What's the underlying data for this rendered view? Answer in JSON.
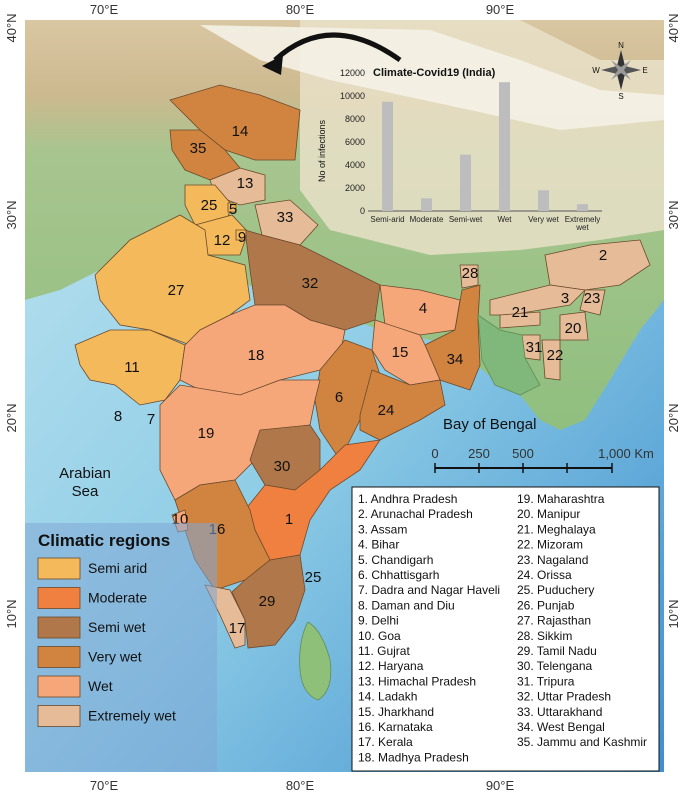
{
  "axes": {
    "longitude_labels": [
      "70°E",
      "80°E",
      "90°E"
    ],
    "latitude_labels": [
      "40°N",
      "30°N",
      "20°N",
      "10°N"
    ]
  },
  "seas": {
    "bay_of_bengal": "Bay of Bengal",
    "arabian_sea_line1": "Arabian",
    "arabian_sea_line2": "Sea"
  },
  "compass": {
    "north": "N",
    "south": "S",
    "east": "E",
    "west": "W"
  },
  "scale_bar": {
    "ticks": [
      "0",
      "250",
      "500"
    ],
    "end_label": "1,000 Km"
  },
  "climatic_legend": {
    "title": "Climatic regions",
    "items": [
      {
        "label": "Semi arid",
        "color": "#f3b95a"
      },
      {
        "label": "Moderate",
        "color": "#f08040"
      },
      {
        "label": "Semi wet",
        "color": "#b0784a"
      },
      {
        "label": "Very wet",
        "color": "#d08440"
      },
      {
        "label": "Wet",
        "color": "#f6a77a"
      },
      {
        "label": "Extremely wet",
        "color": "#e6bb98"
      }
    ]
  },
  "states": [
    "1. Andhra Pradesh",
    "2. Arunachal Pradesh",
    "3. Assam",
    "4. Bihar",
    "5. Chandigarh",
    "6. Chhattisgarh",
    "7. Dadra and Nagar Haveli",
    "8. Daman and Diu",
    "9. Delhi",
    "10. Goa",
    "11. Gujrat",
    "12. Haryana",
    "13. Himachal Pradesh",
    "14. Ladakh",
    "15. Jharkhand",
    "16. Karnataka",
    "17. Kerala",
    "18. Madhya Pradesh",
    "19. Maharashtra",
    "20. Manipur",
    "21. Meghalaya",
    "22. Mizoram",
    "23. Nagaland",
    "24. Orissa",
    "25. Puduchery",
    "26. Punjab",
    "27. Rajasthan",
    "28. Sikkim",
    "29. Tamil Nadu",
    "30. Telengana",
    "31. Tripura",
    "32. Uttar Pradesh",
    "33. Uttarakhand",
    "34. West Bengal",
    "35. Jammu and Kashmir"
  ],
  "map_numbers": {
    "n1": "1",
    "n2": "2",
    "n3": "3",
    "n4": "4",
    "n5": "5",
    "n6": "6",
    "n7": "7",
    "n8": "8",
    "n9": "9",
    "n10": "10",
    "n11": "11",
    "n12": "12",
    "n13": "13",
    "n14": "14",
    "n15": "15",
    "n16": "16",
    "n17": "17",
    "n18": "18",
    "n19": "19",
    "n20": "20",
    "n21": "21",
    "n22": "22",
    "n23": "23",
    "n24": "24",
    "n25": "25",
    "n25b": "25",
    "n27": "27",
    "n28": "28",
    "n29": "29",
    "n30": "30",
    "n31": "31",
    "n32": "32",
    "n33": "33",
    "n34": "34",
    "n35": "35"
  },
  "chart_data": {
    "type": "bar",
    "title": "Climate-Covid19 (India)",
    "ylabel": "No of infections",
    "xlabel": "",
    "categories": [
      "Semi-arid",
      "Moderate",
      "Semi-wet",
      "Wet",
      "Very wet",
      "Extremely wet"
    ],
    "category_lines": [
      [
        "Semi-arid"
      ],
      [
        "Moderate"
      ],
      [
        "Semi-wet"
      ],
      [
        "Wet"
      ],
      [
        "Very wet"
      ],
      [
        "Extremely",
        "wet"
      ]
    ],
    "values": [
      9500,
      1100,
      4900,
      11200,
      1800,
      600
    ],
    "ylim": [
      0,
      12000
    ],
    "yticks": [
      "0",
      "2000",
      "4000",
      "6000",
      "8000",
      "10000",
      "12000"
    ],
    "bar_color": "#bdbdbd",
    "grid": false
  }
}
